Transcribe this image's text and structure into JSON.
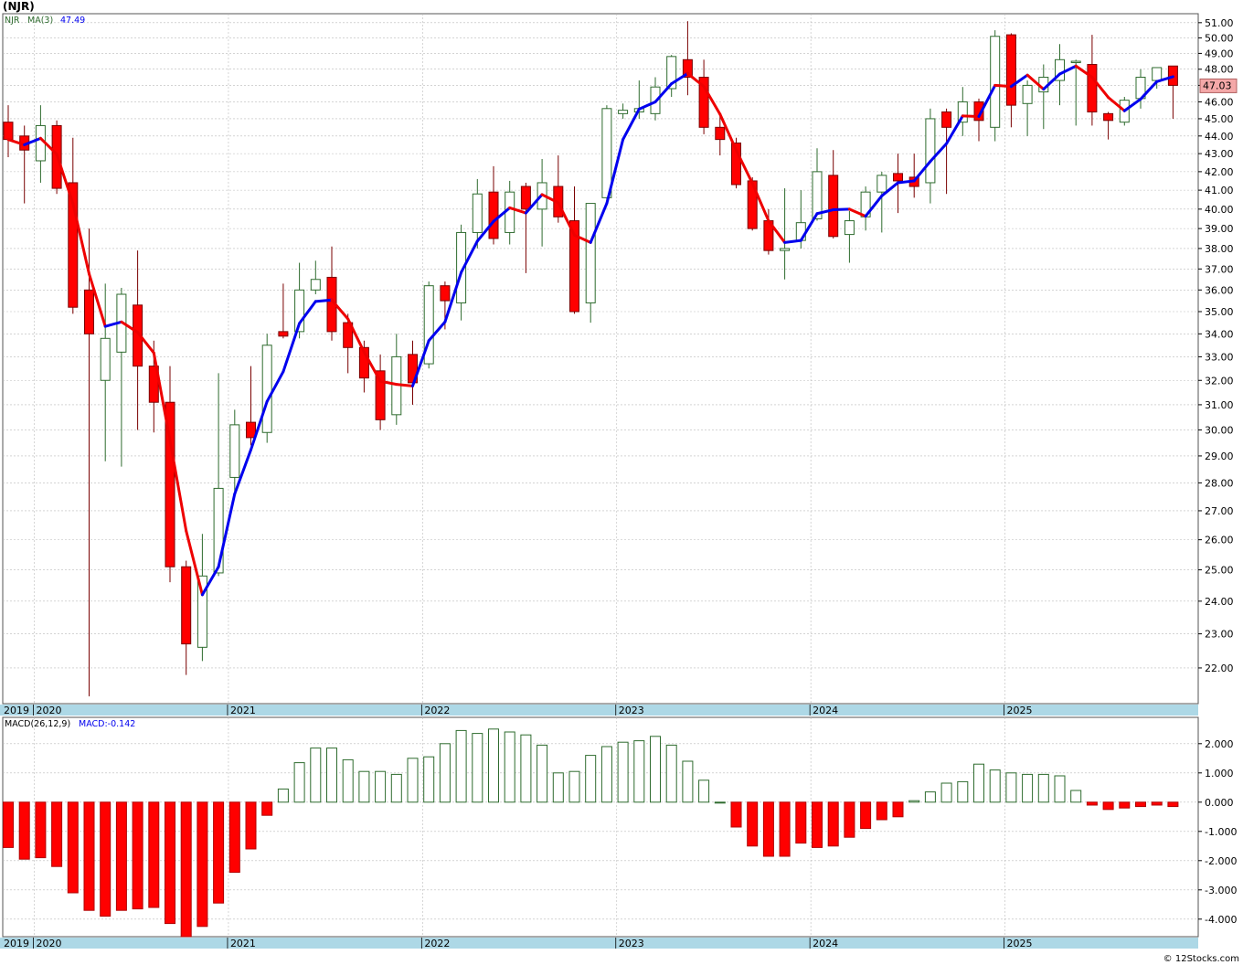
{
  "header": {
    "symbol_label": "(NJR)"
  },
  "price_panel": {
    "legend_symbol": "NJR",
    "legend_ma": "MA(3)",
    "legend_ma_value": "47.49",
    "last_price_badge": "47.03",
    "y_ticks": [
      "22.00",
      "23.00",
      "24.00",
      "25.00",
      "26.00",
      "27.00",
      "28.00",
      "29.00",
      "30.00",
      "31.00",
      "32.00",
      "33.00",
      "34.00",
      "35.00",
      "36.00",
      "37.00",
      "38.00",
      "39.00",
      "40.00",
      "41.00",
      "42.00",
      "43.00",
      "44.00",
      "45.00",
      "46.00",
      "47.00",
      "48.00",
      "49.00",
      "50.00",
      "51.00"
    ]
  },
  "macd_panel": {
    "legend_name": "MACD(26,12,9)",
    "legend_value": "MACD:-0.142",
    "y_ticks": [
      "2.000",
      "1.000",
      "0.000",
      "-1.000",
      "-2.000",
      "-3.000",
      "-4.000"
    ]
  },
  "x_axis": {
    "years": [
      "2019",
      "2020",
      "2021",
      "2022",
      "2023",
      "2024",
      "2025"
    ]
  },
  "footer": {
    "credit": "© 12Stocks.com"
  },
  "colors": {
    "up": "#2e6b2e",
    "down": "#ff0000",
    "ma_up": "#0000ee",
    "ma_down": "#ee0000",
    "axis_band": "#add8e6",
    "grid": "#bbbbbb"
  },
  "chart_data": [
    {
      "type": "candlestick",
      "title": "(NJR)",
      "interval": "monthly",
      "ylim": [
        21.0,
        51.6
      ],
      "scale": "log",
      "grid": true,
      "moving_average": {
        "name": "MA(3)",
        "last_value": 47.49
      },
      "candles": [
        {
          "date": "2019-11",
          "open": 44.8,
          "high": 45.8,
          "low": 42.8,
          "close": 43.8
        },
        {
          "date": "2019-12",
          "open": 44.0,
          "high": 44.6,
          "low": 40.3,
          "close": 43.2
        },
        {
          "date": "2020-01",
          "open": 42.6,
          "high": 45.8,
          "low": 41.4,
          "close": 44.6
        },
        {
          "date": "2020-02",
          "open": 44.6,
          "high": 44.9,
          "low": 40.8,
          "close": 41.1
        },
        {
          "date": "2020-03",
          "open": 41.4,
          "high": 43.9,
          "low": 34.9,
          "close": 35.2
        },
        {
          "date": "2020-04",
          "open": 36.0,
          "high": 39.0,
          "low": 21.2,
          "close": 34.0
        },
        {
          "date": "2020-05",
          "open": 32.0,
          "high": 36.3,
          "low": 28.8,
          "close": 33.8
        },
        {
          "date": "2020-06",
          "open": 33.2,
          "high": 36.1,
          "low": 28.6,
          "close": 35.8
        },
        {
          "date": "2020-07",
          "open": 35.3,
          "high": 37.9,
          "low": 30.0,
          "close": 32.6
        },
        {
          "date": "2020-08",
          "open": 32.6,
          "high": 33.7,
          "low": 29.9,
          "close": 31.1
        },
        {
          "date": "2020-09",
          "open": 31.1,
          "high": 32.6,
          "low": 24.6,
          "close": 25.1
        },
        {
          "date": "2020-10",
          "open": 25.1,
          "high": 25.3,
          "low": 21.8,
          "close": 22.7
        },
        {
          "date": "2020-11",
          "open": 22.6,
          "high": 26.2,
          "low": 22.2,
          "close": 24.8
        },
        {
          "date": "2020-12",
          "open": 24.9,
          "high": 32.3,
          "low": 24.8,
          "close": 27.8
        },
        {
          "date": "2021-01",
          "open": 28.2,
          "high": 30.8,
          "low": 27.6,
          "close": 30.2
        },
        {
          "date": "2021-02",
          "open": 30.3,
          "high": 32.6,
          "low": 29.4,
          "close": 29.7
        },
        {
          "date": "2021-03",
          "open": 29.9,
          "high": 34.0,
          "low": 29.5,
          "close": 33.5
        },
        {
          "date": "2021-04",
          "open": 34.1,
          "high": 36.3,
          "low": 33.8,
          "close": 33.9
        },
        {
          "date": "2021-05",
          "open": 34.1,
          "high": 37.3,
          "low": 33.8,
          "close": 36.0
        },
        {
          "date": "2021-06",
          "open": 36.0,
          "high": 37.4,
          "low": 35.8,
          "close": 36.5
        },
        {
          "date": "2021-07",
          "open": 36.6,
          "high": 38.1,
          "low": 33.7,
          "close": 34.1
        },
        {
          "date": "2021-08",
          "open": 34.5,
          "high": 34.9,
          "low": 32.3,
          "close": 33.4
        },
        {
          "date": "2021-09",
          "open": 33.4,
          "high": 33.7,
          "low": 31.5,
          "close": 32.1
        },
        {
          "date": "2021-10",
          "open": 32.4,
          "high": 33.1,
          "low": 30.0,
          "close": 30.4
        },
        {
          "date": "2021-11",
          "open": 30.6,
          "high": 34.0,
          "low": 30.2,
          "close": 33.0
        },
        {
          "date": "2021-12",
          "open": 33.1,
          "high": 33.7,
          "low": 31.0,
          "close": 31.9
        },
        {
          "date": "2022-01",
          "open": 32.7,
          "high": 36.4,
          "low": 32.5,
          "close": 36.2
        },
        {
          "date": "2022-02",
          "open": 36.2,
          "high": 36.4,
          "low": 34.2,
          "close": 35.5
        },
        {
          "date": "2022-03",
          "open": 35.4,
          "high": 39.2,
          "low": 34.6,
          "close": 38.8
        },
        {
          "date": "2022-04",
          "open": 38.8,
          "high": 41.6,
          "low": 38.0,
          "close": 40.8
        },
        {
          "date": "2022-05",
          "open": 40.9,
          "high": 42.3,
          "low": 38.2,
          "close": 38.5
        },
        {
          "date": "2022-06",
          "open": 38.8,
          "high": 41.5,
          "low": 38.2,
          "close": 40.9
        },
        {
          "date": "2022-07",
          "open": 41.2,
          "high": 41.4,
          "low": 36.8,
          "close": 40.0
        },
        {
          "date": "2022-08",
          "open": 40.0,
          "high": 42.7,
          "low": 38.1,
          "close": 41.4
        },
        {
          "date": "2022-09",
          "open": 41.2,
          "high": 42.9,
          "low": 39.3,
          "close": 39.6
        },
        {
          "date": "2022-10",
          "open": 39.4,
          "high": 41.2,
          "low": 34.9,
          "close": 35.0
        },
        {
          "date": "2022-11",
          "open": 35.4,
          "high": 40.3,
          "low": 34.5,
          "close": 40.3
        },
        {
          "date": "2022-12",
          "open": 40.6,
          "high": 45.8,
          "low": 40.4,
          "close": 45.6
        },
        {
          "date": "2023-01",
          "open": 45.3,
          "high": 45.9,
          "low": 45.0,
          "close": 45.5
        },
        {
          "date": "2023-02",
          "open": 45.4,
          "high": 47.3,
          "low": 45.0,
          "close": 45.6
        },
        {
          "date": "2023-03",
          "open": 45.3,
          "high": 47.5,
          "low": 44.9,
          "close": 46.9
        },
        {
          "date": "2023-04",
          "open": 46.8,
          "high": 48.9,
          "low": 46.3,
          "close": 48.8
        },
        {
          "date": "2023-05",
          "open": 48.6,
          "high": 51.1,
          "low": 46.4,
          "close": 47.5
        },
        {
          "date": "2023-06",
          "open": 47.5,
          "high": 48.6,
          "low": 44.1,
          "close": 44.5
        },
        {
          "date": "2023-07",
          "open": 44.5,
          "high": 45.3,
          "low": 42.9,
          "close": 43.8
        },
        {
          "date": "2023-08",
          "open": 43.6,
          "high": 43.9,
          "low": 41.1,
          "close": 41.3
        },
        {
          "date": "2023-09",
          "open": 41.5,
          "high": 41.7,
          "low": 38.9,
          "close": 39.0
        },
        {
          "date": "2023-10",
          "open": 39.4,
          "high": 40.0,
          "low": 37.7,
          "close": 37.9
        },
        {
          "date": "2023-11",
          "open": 37.9,
          "high": 41.1,
          "low": 36.5,
          "close": 38.0
        },
        {
          "date": "2023-12",
          "open": 38.4,
          "high": 41.0,
          "low": 38.0,
          "close": 39.3
        },
        {
          "date": "2024-01",
          "open": 39.5,
          "high": 43.3,
          "low": 39.4,
          "close": 42.0
        },
        {
          "date": "2024-02",
          "open": 41.8,
          "high": 43.2,
          "low": 38.5,
          "close": 38.6
        },
        {
          "date": "2024-03",
          "open": 38.7,
          "high": 39.9,
          "low": 37.3,
          "close": 39.4
        },
        {
          "date": "2024-04",
          "open": 39.6,
          "high": 41.2,
          "low": 38.9,
          "close": 40.9
        },
        {
          "date": "2024-05",
          "open": 40.9,
          "high": 42.0,
          "low": 38.8,
          "close": 41.8
        },
        {
          "date": "2024-06",
          "open": 41.9,
          "high": 43.0,
          "low": 39.8,
          "close": 41.5
        },
        {
          "date": "2024-07",
          "open": 41.7,
          "high": 43.0,
          "low": 40.6,
          "close": 41.2
        },
        {
          "date": "2024-08",
          "open": 41.4,
          "high": 45.6,
          "low": 40.3,
          "close": 45.0
        },
        {
          "date": "2024-09",
          "open": 45.4,
          "high": 45.6,
          "low": 40.8,
          "close": 44.5
        },
        {
          "date": "2024-10",
          "open": 44.8,
          "high": 46.9,
          "low": 44.0,
          "close": 46.0
        },
        {
          "date": "2024-11",
          "open": 46.0,
          "high": 46.2,
          "low": 43.7,
          "close": 44.9
        },
        {
          "date": "2024-12",
          "open": 44.5,
          "high": 50.5,
          "low": 43.7,
          "close": 50.1
        },
        {
          "date": "2025-01",
          "open": 50.2,
          "high": 50.3,
          "low": 44.5,
          "close": 45.8
        },
        {
          "date": "2025-02",
          "open": 45.9,
          "high": 47.3,
          "low": 44.0,
          "close": 47.0
        },
        {
          "date": "2025-03",
          "open": 46.6,
          "high": 48.3,
          "low": 44.4,
          "close": 47.5
        },
        {
          "date": "2025-04",
          "open": 47.3,
          "high": 49.6,
          "low": 45.8,
          "close": 48.6
        },
        {
          "date": "2025-05",
          "open": 48.5,
          "high": 48.6,
          "low": 44.6,
          "close": 48.5
        },
        {
          "date": "2025-06",
          "open": 48.3,
          "high": 50.2,
          "low": 44.6,
          "close": 45.4
        },
        {
          "date": "2025-07",
          "open": 45.3,
          "high": 45.4,
          "low": 43.8,
          "close": 44.9
        },
        {
          "date": "2025-08",
          "open": 44.8,
          "high": 46.3,
          "low": 44.6,
          "close": 46.1
        },
        {
          "date": "2025-09",
          "open": 46.2,
          "high": 48.0,
          "low": 45.6,
          "close": 47.5
        },
        {
          "date": "2025-10",
          "open": 47.3,
          "high": 48.1,
          "low": 46.8,
          "close": 48.1
        },
        {
          "date": "2025-11",
          "open": 48.2,
          "high": 48.2,
          "low": 45.0,
          "close": 47.0
        }
      ]
    },
    {
      "type": "bar",
      "title": "MACD(26,12,9)",
      "ylim": [
        -4.6,
        2.9
      ],
      "last_value": -0.142,
      "categories": [
        "2019-11",
        "2019-12",
        "2020-01",
        "2020-02",
        "2020-03",
        "2020-04",
        "2020-05",
        "2020-06",
        "2020-07",
        "2020-08",
        "2020-09",
        "2020-10",
        "2020-11",
        "2020-12",
        "2021-01",
        "2021-02",
        "2021-03",
        "2021-04",
        "2021-05",
        "2021-06",
        "2021-07",
        "2021-08",
        "2021-09",
        "2021-10",
        "2021-11",
        "2021-12",
        "2022-01",
        "2022-02",
        "2022-03",
        "2022-04",
        "2022-05",
        "2022-06",
        "2022-07",
        "2022-08",
        "2022-09",
        "2022-10",
        "2022-11",
        "2022-12",
        "2023-01",
        "2023-02",
        "2023-03",
        "2023-04",
        "2023-05",
        "2023-06",
        "2023-07",
        "2023-08",
        "2023-09",
        "2023-10",
        "2023-11",
        "2023-12",
        "2024-01",
        "2024-02",
        "2024-03",
        "2024-04",
        "2024-05",
        "2024-06",
        "2024-07",
        "2024-08",
        "2024-09",
        "2024-10",
        "2024-11",
        "2024-12",
        "2025-01",
        "2025-02",
        "2025-03",
        "2025-04",
        "2025-05",
        "2025-06",
        "2025-07",
        "2025-08",
        "2025-09",
        "2025-10",
        "2025-11"
      ],
      "values": [
        -1.55,
        -1.95,
        -1.9,
        -2.2,
        -3.1,
        -3.7,
        -3.9,
        -3.7,
        -3.65,
        -3.6,
        -4.15,
        -4.6,
        -4.25,
        -3.45,
        -2.4,
        -1.6,
        -0.45,
        0.45,
        1.35,
        1.85,
        1.85,
        1.45,
        1.05,
        1.05,
        0.95,
        1.5,
        1.55,
        2.0,
        2.45,
        2.35,
        2.5,
        2.4,
        2.3,
        1.95,
        1.0,
        1.05,
        1.6,
        1.9,
        2.05,
        2.1,
        2.25,
        1.95,
        1.4,
        0.75,
        0.0,
        -0.85,
        -1.5,
        -1.85,
        -1.85,
        -1.4,
        -1.55,
        -1.5,
        -1.2,
        -0.9,
        -0.6,
        -0.5,
        0.05,
        0.35,
        0.65,
        0.7,
        1.3,
        1.1,
        1.0,
        0.95,
        0.95,
        0.9,
        0.4,
        -0.1,
        -0.25,
        -0.2,
        -0.15,
        -0.1,
        -0.15
      ]
    }
  ]
}
